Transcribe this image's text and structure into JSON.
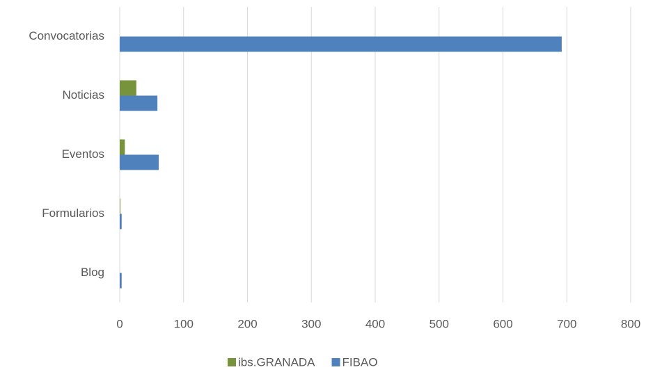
{
  "chart_data": {
    "type": "hbar",
    "categories": [
      "Convocatorias",
      "Noticias",
      "Eventos",
      "Formularios",
      "Blog"
    ],
    "series": [
      {
        "name": "ibs.GRANADA",
        "color": "#77933c",
        "values": [
          0,
          26,
          8,
          1,
          0
        ]
      },
      {
        "name": "FIBAO",
        "color": "#4f81bd",
        "values": [
          692,
          59,
          61,
          3,
          3
        ]
      }
    ],
    "xlim": [
      0,
      800
    ],
    "xticks": [
      0,
      100,
      200,
      300,
      400,
      500,
      600,
      700,
      800
    ],
    "grid": true,
    "legend": "bottom"
  }
}
